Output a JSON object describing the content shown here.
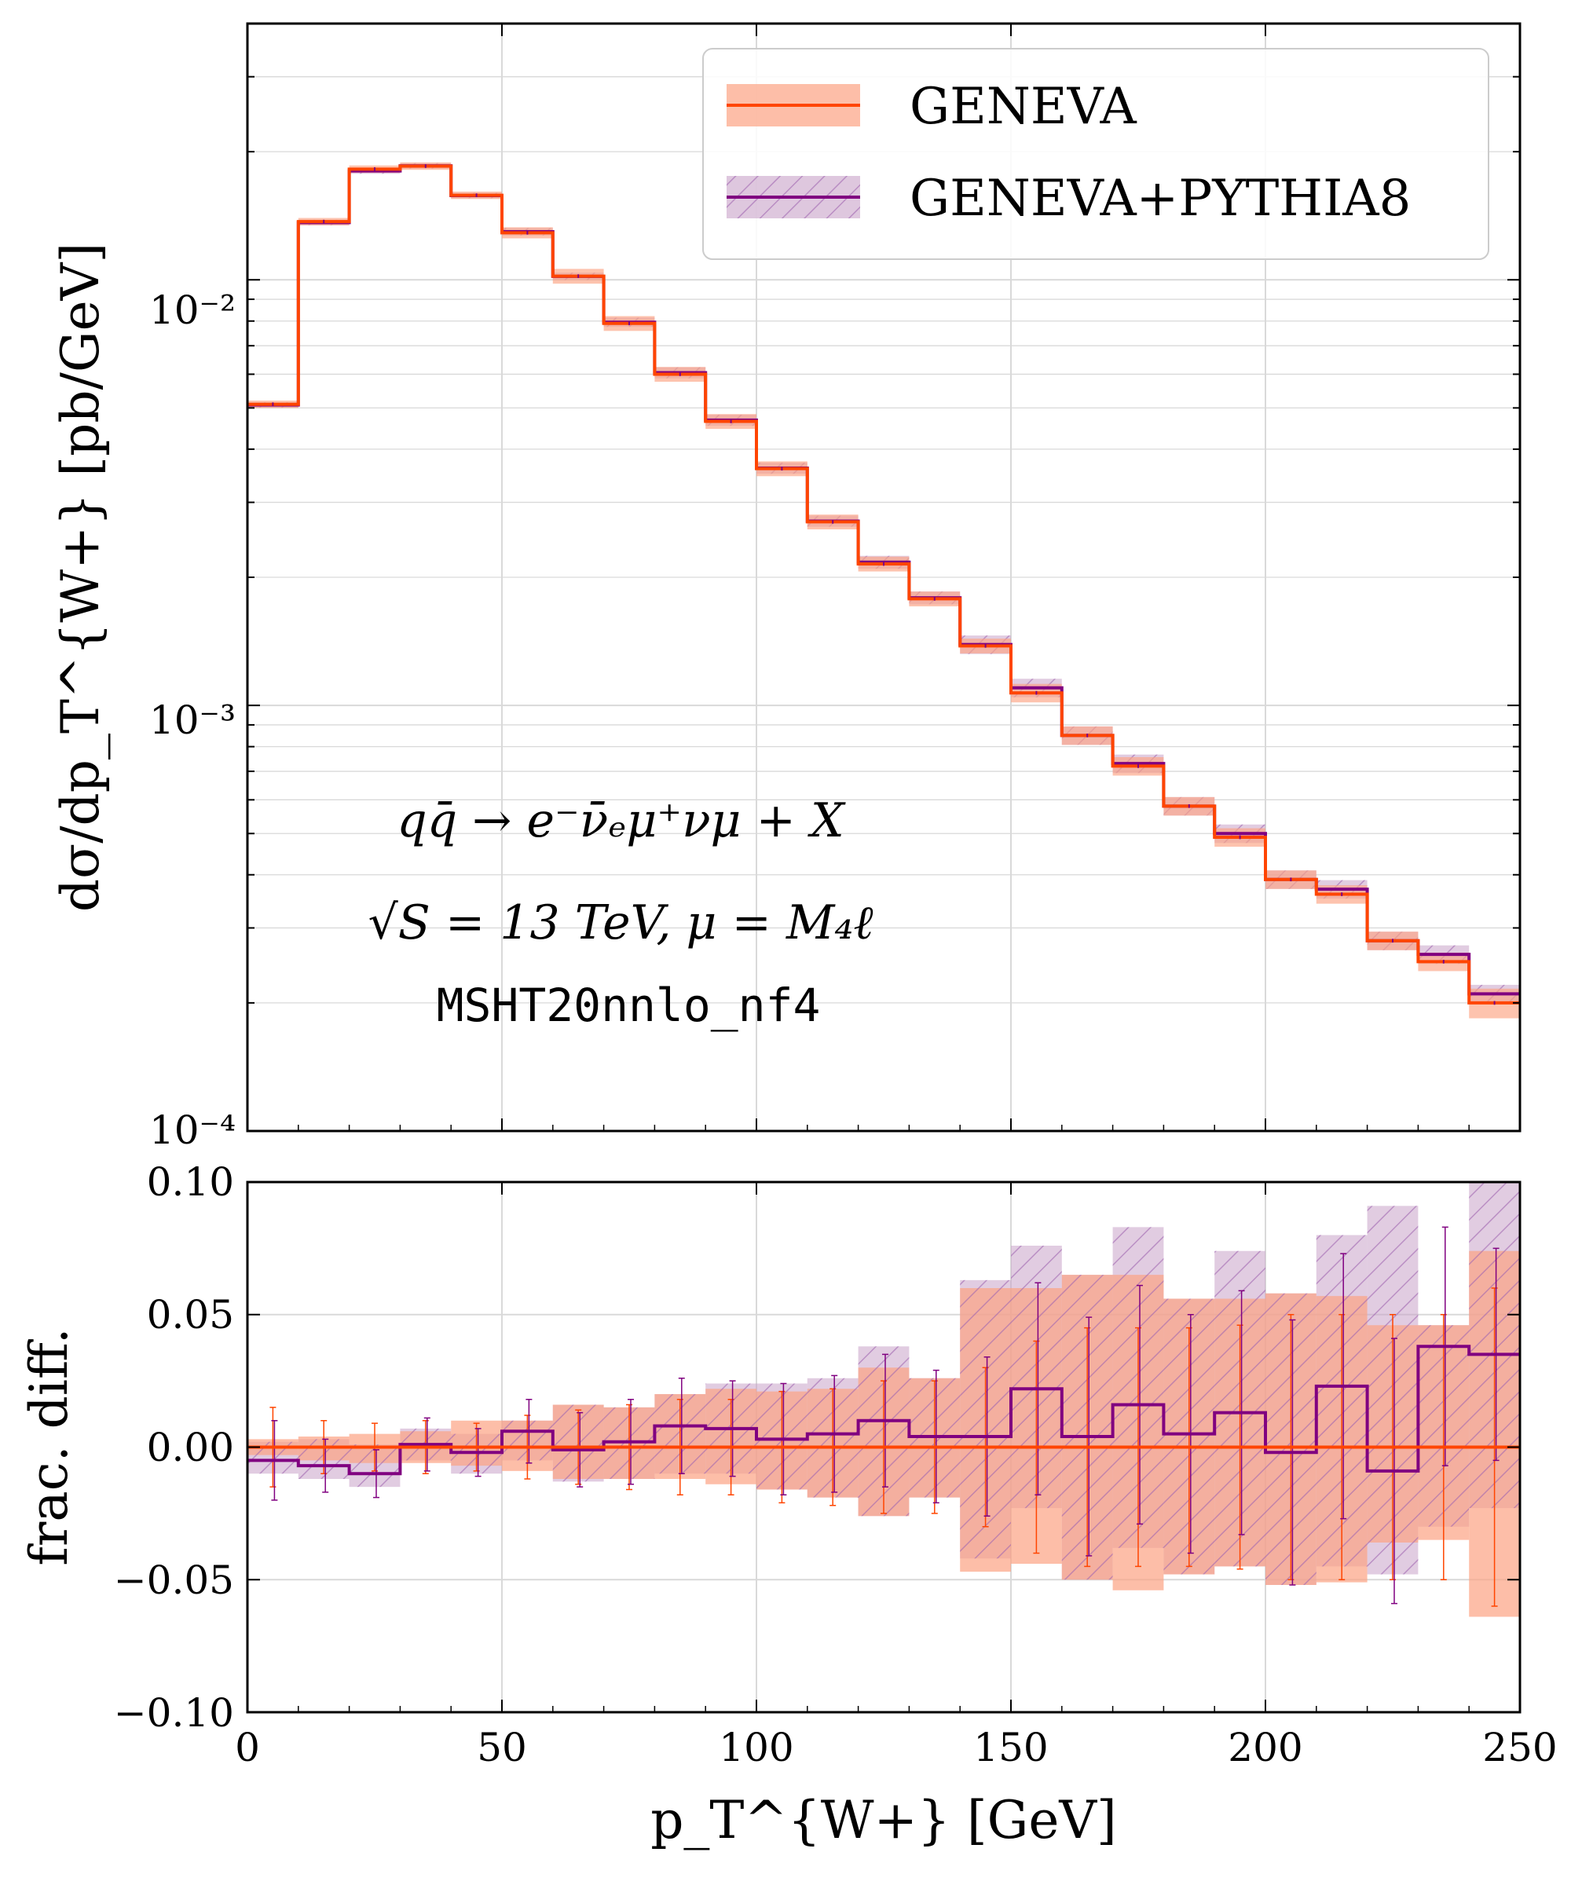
{
  "colors": {
    "geneva_line": "#ff4500",
    "geneva_band": "#fca383",
    "pythia_line": "#800080",
    "pythia_band": "#c8a2c8",
    "grid": "#d9d9d9"
  },
  "chart_data": [
    {
      "type": "line",
      "panel": "main",
      "yscale": "log",
      "xlabel": "p_T^{W+}   [GeV]",
      "ylabel": "dσ/dp_T^{W+}   [pb/GeV]",
      "xlim": [
        0,
        250
      ],
      "ylim": [
        0.0001,
        0.04
      ],
      "yticks": [
        "10⁻²",
        "10⁻³",
        "10⁻⁴"
      ],
      "legend_position": "top-right",
      "legend": [
        "GENEVA",
        "GENEVA+PYTHIA8"
      ],
      "annotations": [
        "qq̄ → e⁻ν̄ₑμ⁺νμ + X",
        "√S = 13 TeV, μ = M₄ℓ",
        "MSHT20nnlo_nf4"
      ],
      "bin_edges": [
        0,
        10,
        20,
        30,
        40,
        50,
        60,
        70,
        80,
        90,
        100,
        110,
        120,
        130,
        140,
        150,
        160,
        170,
        180,
        190,
        200,
        210,
        220,
        230,
        240,
        250
      ],
      "series": [
        {
          "name": "GENEVA",
          "values": [
            0.0051,
            0.0137,
            0.0182,
            0.0185,
            0.0158,
            0.0129,
            0.0102,
            0.0079,
            0.006,
            0.00465,
            0.0036,
            0.0027,
            0.00215,
            0.00178,
            0.00138,
            0.00107,
            0.00085,
            0.00072,
            0.00058,
            0.00049,
            0.00039,
            0.00036,
            0.00028,
            0.00025,
            0.0002
          ],
          "band_frac": [
            0.02,
            0.02,
            0.02,
            0.02,
            0.02,
            0.03,
            0.04,
            0.04,
            0.04,
            0.04,
            0.04,
            0.04,
            0.04,
            0.04,
            0.04,
            0.05,
            0.05,
            0.05,
            0.05,
            0.05,
            0.05,
            0.05,
            0.05,
            0.05,
            0.08
          ]
        },
        {
          "name": "GENEVA+PYTHIA8",
          "values": [
            0.00508,
            0.01363,
            0.01802,
            0.01853,
            0.01577,
            0.01297,
            0.01019,
            0.00795,
            0.00605,
            0.00468,
            0.00361,
            0.00271,
            0.00217,
            0.00179,
            0.00139,
            0.0011,
            0.00085,
            0.00073,
            0.00058,
            0.0005,
            0.00039,
            0.00037,
            0.00028,
            0.00026,
            0.00021
          ],
          "band_frac": [
            0.015,
            0.015,
            0.015,
            0.015,
            0.015,
            0.02,
            0.02,
            0.025,
            0.03,
            0.03,
            0.03,
            0.03,
            0.035,
            0.035,
            0.05,
            0.05,
            0.05,
            0.05,
            0.05,
            0.05,
            0.05,
            0.05,
            0.05,
            0.05,
            0.05
          ]
        }
      ]
    },
    {
      "type": "line",
      "panel": "ratio",
      "xlabel": "p_T^{W+}   [GeV]",
      "ylabel": "frac. diff.",
      "xlim": [
        0,
        250
      ],
      "ylim": [
        -0.1,
        0.1
      ],
      "xticks": [
        "0",
        "50",
        "100",
        "150",
        "200",
        "250"
      ],
      "yticks": [
        "0.10",
        "0.05",
        "0.00",
        "−0.05",
        "−0.10"
      ],
      "bin_edges": [
        0,
        10,
        20,
        30,
        40,
        50,
        60,
        70,
        80,
        90,
        100,
        110,
        120,
        130,
        140,
        150,
        160,
        170,
        180,
        190,
        200,
        210,
        220,
        230,
        240,
        250
      ],
      "series": [
        {
          "name": "GENEVA",
          "values": [
            0,
            0,
            0,
            0,
            0,
            0,
            0,
            0,
            0,
            0,
            0,
            0,
            0,
            0,
            0,
            0,
            0,
            0,
            0,
            0,
            0,
            0,
            0,
            0,
            0
          ],
          "band_low": [
            -0.003,
            -0.005,
            -0.006,
            -0.006,
            -0.007,
            -0.009,
            -0.012,
            -0.012,
            -0.012,
            -0.014,
            -0.016,
            -0.019,
            -0.026,
            -0.019,
            -0.047,
            -0.044,
            -0.05,
            -0.054,
            -0.048,
            -0.045,
            -0.052,
            -0.051,
            -0.036,
            -0.035,
            -0.064
          ],
          "band_high": [
            0.003,
            0.004,
            0.005,
            0.006,
            0.01,
            0.01,
            0.016,
            0.015,
            0.02,
            0.022,
            0.021,
            0.022,
            0.03,
            0.026,
            0.06,
            0.06,
            0.065,
            0.065,
            0.056,
            0.056,
            0.058,
            0.057,
            0.046,
            0.046,
            0.074
          ],
          "errors": [
            0.015,
            0.01,
            0.009,
            0.01,
            0.009,
            0.012,
            0.014,
            0.016,
            0.018,
            0.018,
            0.021,
            0.022,
            0.025,
            0.025,
            0.03,
            0.04,
            0.045,
            0.045,
            0.045,
            0.046,
            0.05,
            0.05,
            0.05,
            0.05,
            0.06
          ]
        },
        {
          "name": "GENEVA+PYTHIA8",
          "values": [
            -0.005,
            -0.007,
            -0.01,
            0.001,
            -0.002,
            0.006,
            -0.001,
            0.002,
            0.008,
            0.007,
            0.003,
            0.005,
            0.01,
            0.004,
            0.004,
            0.022,
            0.004,
            0.016,
            0.005,
            0.013,
            -0.002,
            0.023,
            -0.009,
            0.038,
            0.035
          ],
          "band_low": [
            -0.01,
            -0.012,
            -0.015,
            -0.005,
            -0.01,
            -0.005,
            -0.013,
            -0.012,
            -0.01,
            -0.01,
            -0.016,
            -0.019,
            -0.026,
            -0.019,
            -0.042,
            -0.023,
            -0.05,
            -0.038,
            -0.048,
            -0.045,
            -0.052,
            -0.045,
            -0.048,
            -0.03,
            -0.023
          ],
          "band_high": [
            0.002,
            0.003,
            0.001,
            0.007,
            0.005,
            0.01,
            0.016,
            0.015,
            0.02,
            0.024,
            0.024,
            0.026,
            0.038,
            0.026,
            0.063,
            0.076,
            0.065,
            0.083,
            0.056,
            0.074,
            0.058,
            0.08,
            0.091,
            0.046,
            0.1
          ],
          "errors": [
            0.015,
            0.01,
            0.009,
            0.01,
            0.009,
            0.012,
            0.014,
            0.016,
            0.018,
            0.018,
            0.021,
            0.022,
            0.025,
            0.025,
            0.03,
            0.04,
            0.045,
            0.045,
            0.045,
            0.046,
            0.05,
            0.05,
            0.05,
            0.045,
            0.04
          ]
        }
      ]
    }
  ]
}
